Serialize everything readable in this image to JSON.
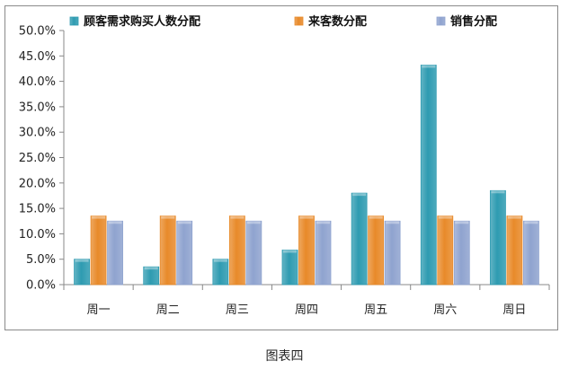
{
  "chart_data": {
    "type": "bar",
    "categories": [
      "周一",
      "周二",
      "周三",
      "周四",
      "周五",
      "周六",
      "周日"
    ],
    "series": [
      {
        "name": "顾客需求购买人数分配",
        "color": "#2e9bb1",
        "values": [
          5.0,
          3.5,
          5.0,
          6.8,
          18.0,
          43.2,
          18.5
        ]
      },
      {
        "name": "来客数分配",
        "color": "#e88a2a",
        "values": [
          13.5,
          13.5,
          13.5,
          13.5,
          13.5,
          13.5,
          13.5
        ]
      },
      {
        "name": "销售分配",
        "color": "#8fa3cf",
        "values": [
          12.5,
          12.5,
          12.5,
          12.5,
          12.5,
          12.5,
          12.5
        ]
      }
    ],
    "y_ticks": [
      "0.0%",
      "5.0%",
      "10.0%",
      "15.0%",
      "20.0%",
      "25.0%",
      "30.0%",
      "35.0%",
      "40.0%",
      "45.0%",
      "50.0%"
    ],
    "ylim": [
      0,
      50
    ],
    "grid": false,
    "legend_position": "top"
  },
  "caption": "图表四"
}
